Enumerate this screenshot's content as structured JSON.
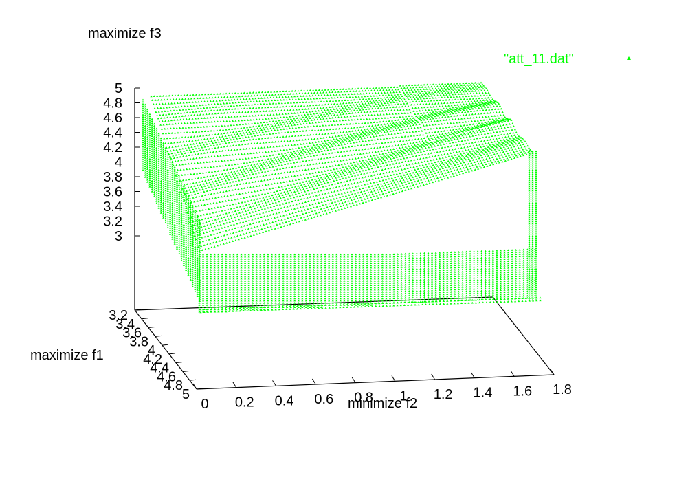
{
  "chart_data": {
    "type": "scatter",
    "title": "",
    "zlabel": "maximize f3",
    "xlabel": "minimize f2",
    "ylabel": "maximize f1",
    "x_ticks": [
      "0",
      "0.2",
      "0.4",
      "0.6",
      "0.8",
      "1",
      "1.2",
      "1.4",
      "1.6",
      "1.8"
    ],
    "y_ticks": [
      "3.2",
      "3.4",
      "3.6",
      "3.8",
      "4",
      "4.2",
      "4.4",
      "4.6",
      "4.8",
      "5"
    ],
    "z_ticks": [
      "5",
      "4.8",
      "4.6",
      "4.4",
      "4.2",
      "4",
      "3.8",
      "3.6",
      "3.4",
      "3.2",
      "3"
    ],
    "xlim": [
      0,
      1.8
    ],
    "ylim": [
      3.2,
      5
    ],
    "zlim": [
      3,
      5
    ],
    "series": [
      {
        "name": "\"att_11.dat\"",
        "color": "#00ff00",
        "marker": "triangle",
        "description": "dense grid of points: f2 from 0 to ~1.75, f1 from 3.2 to 5, f3 approx 3.2 to 5"
      }
    ],
    "legend_position": "top-right",
    "grid": false
  }
}
